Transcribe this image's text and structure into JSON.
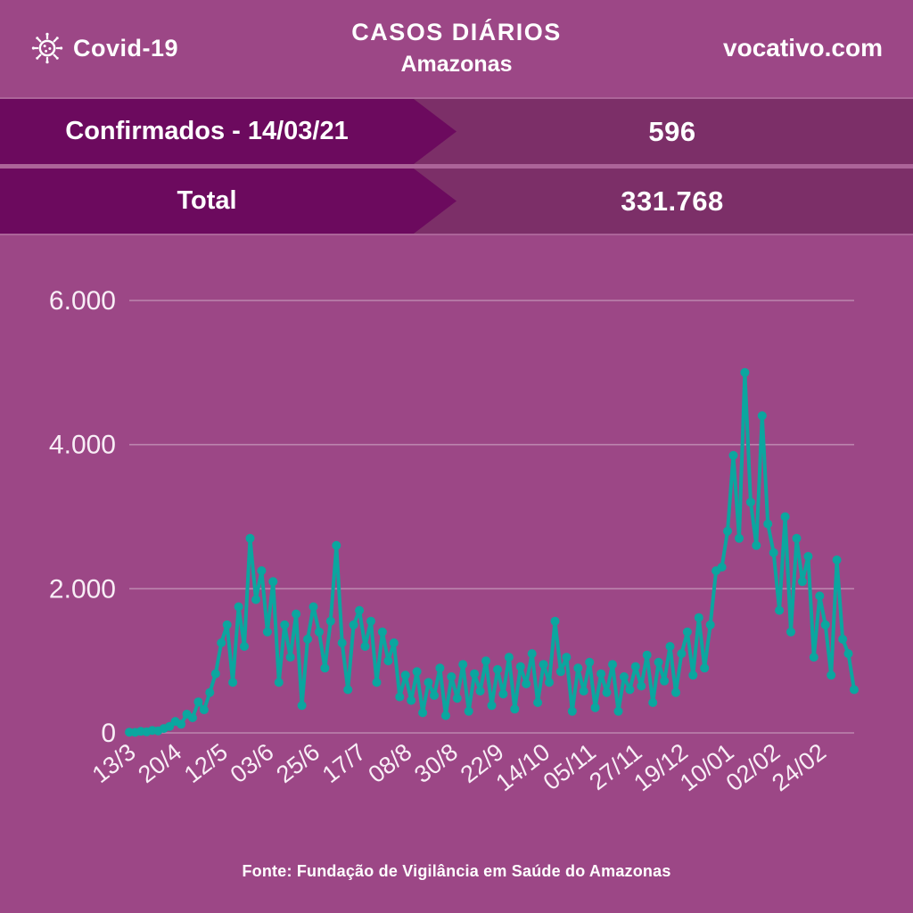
{
  "header": {
    "logo_text": "Covid-19",
    "title_line1": "CASOS DIÁRIOS",
    "title_line2": "Amazonas",
    "site": "vocativo.com"
  },
  "stats": [
    {
      "label": "Confirmados - 14/03/21",
      "value": "596"
    },
    {
      "label": "Total",
      "value": "331.768"
    }
  ],
  "footer": {
    "source": "Fonte: Fundação de Vigilância em Saúde do Amazonas"
  },
  "colors": {
    "background": "#9C4786",
    "band": "#7C2F68",
    "banner_dark": "#6C0A5E",
    "line_teal": "#0BA69F"
  },
  "icons": {
    "logo": "virus-icon"
  },
  "chart_data": {
    "type": "line",
    "title": "Casos diários de Covid-19 no Amazonas",
    "series_name": "casos diários",
    "line_color": "#0BA69F",
    "marker": "circle",
    "grid": "horizontal",
    "ylim": [
      0,
      6000
    ],
    "y_ticks": [
      {
        "label": "0",
        "value": 0
      },
      {
        "label": "2.000",
        "value": 2000
      },
      {
        "label": "4.000",
        "value": 4000
      },
      {
        "label": "6.000",
        "value": 6000
      }
    ],
    "x_tick_labels": [
      "13/3",
      "20/4",
      "12/5",
      "03/6",
      "25/6",
      "17/7",
      "08/8",
      "30/8",
      "22/9",
      "14/10",
      "05/11",
      "27/11",
      "19/12",
      "10/01",
      "02/02",
      "24/02"
    ],
    "x_tick_every": 8,
    "values": [
      10,
      8,
      22,
      15,
      35,
      28,
      60,
      90,
      160,
      120,
      260,
      210,
      430,
      320,
      560,
      820,
      1250,
      1500,
      700,
      1750,
      1200,
      2700,
      1850,
      2250,
      1400,
      2100,
      700,
      1500,
      1050,
      1650,
      380,
      1300,
      1750,
      1400,
      900,
      1550,
      2600,
      1250,
      600,
      1500,
      1700,
      1200,
      1550,
      700,
      1400,
      1000,
      1250,
      500,
      800,
      450,
      850,
      280,
      700,
      520,
      900,
      240,
      780,
      480,
      950,
      300,
      820,
      580,
      1000,
      380,
      880,
      540,
      1050,
      330,
      920,
      680,
      1100,
      420,
      950,
      700,
      1550,
      850,
      1050,
      300,
      900,
      580,
      980,
      350,
      820,
      560,
      950,
      300,
      780,
      600,
      920,
      650,
      1080,
      420,
      980,
      720,
      1200,
      560,
      1100,
      1400,
      800,
      1600,
      900,
      1500,
      2250,
      2300,
      2800,
      3850,
      2700,
      5000,
      3200,
      2600,
      4400,
      2900,
      2500,
      1700,
      3000,
      1400,
      2700,
      2100,
      2450,
      1050,
      1900,
      1500,
      800,
      2400,
      1300,
      1100,
      600
    ]
  }
}
